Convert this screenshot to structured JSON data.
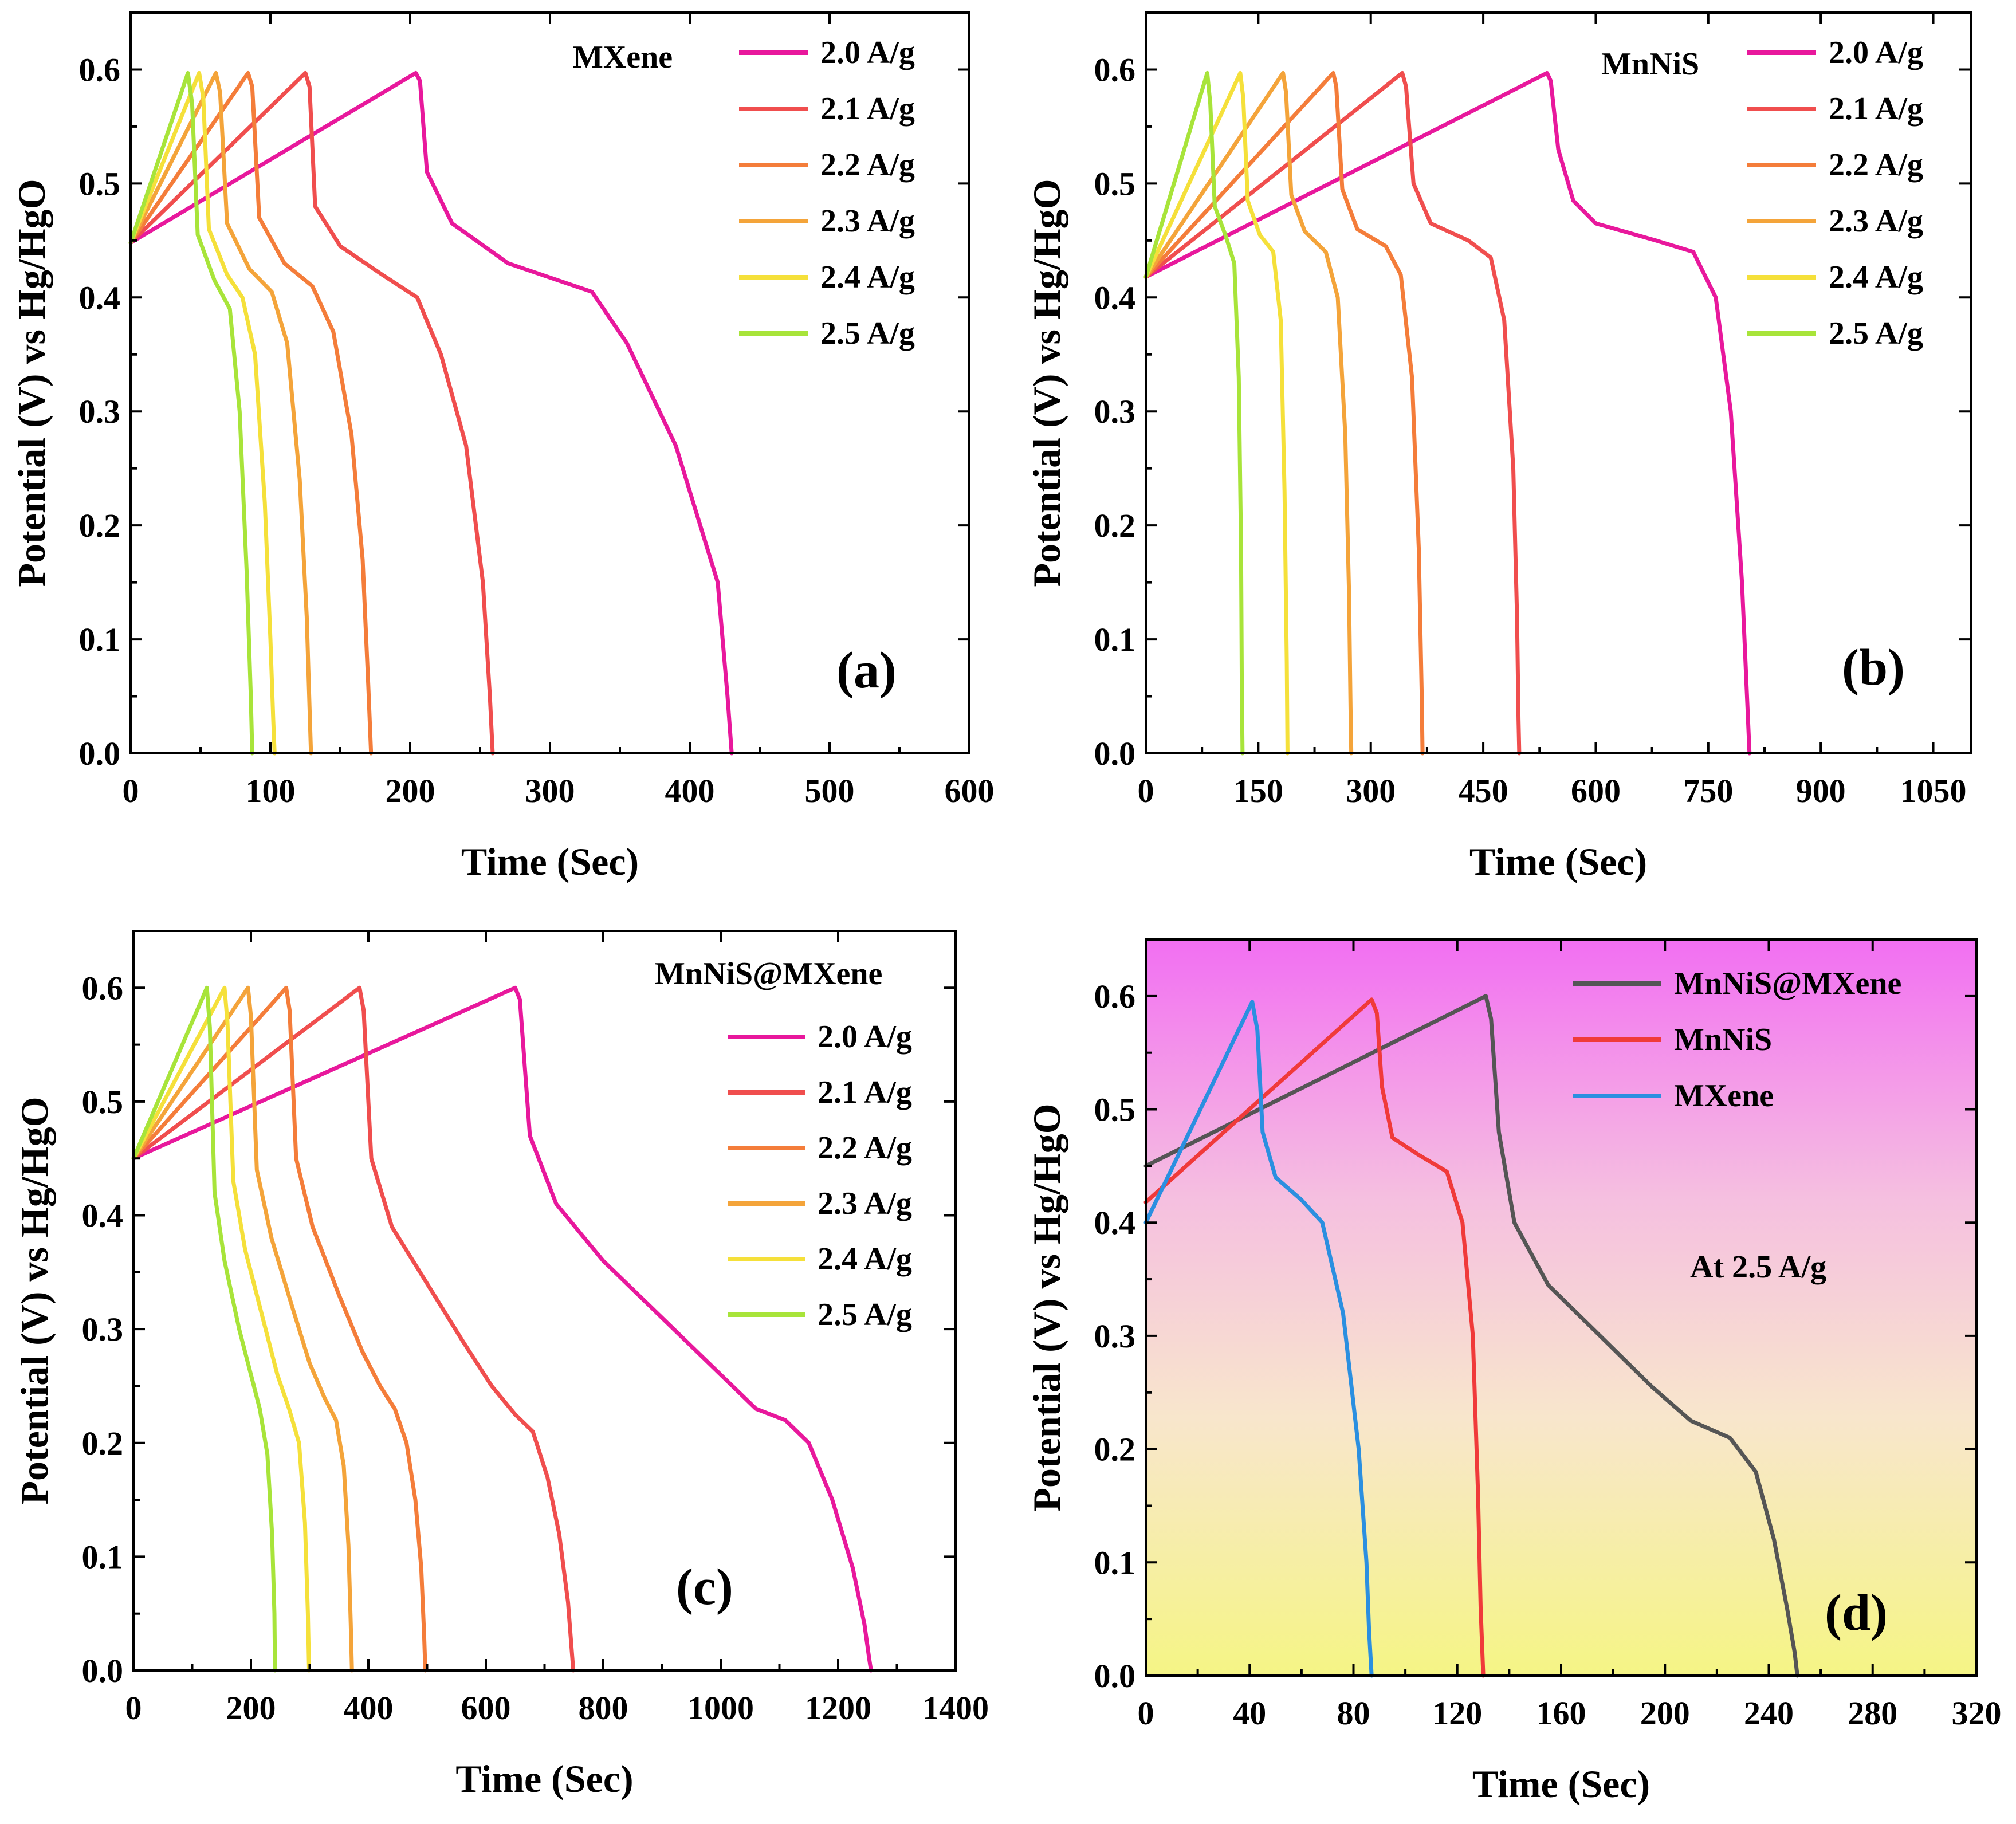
{
  "chart_data": [
    {
      "type": "line",
      "panel_label": "(a)",
      "sample_label": "MXene",
      "xlabel": "Time (Sec)",
      "ylabel": "Potential (V) vs Hg/HgO",
      "xlim": [
        0,
        600
      ],
      "ylim": [
        0,
        0.65
      ],
      "xticks": [
        0,
        100,
        200,
        300,
        400,
        500,
        600
      ],
      "yticks": [
        0.0,
        0.1,
        0.2,
        0.3,
        0.4,
        0.5,
        0.6
      ],
      "background": "white",
      "series": [
        {
          "name": "2.0 A/g",
          "color": "#e8189c",
          "x": [
            0,
            204,
            207,
            212,
            230,
            270,
            330,
            355,
            390,
            420,
            427,
            430
          ],
          "y": [
            0.448,
            0.597,
            0.59,
            0.51,
            0.465,
            0.43,
            0.405,
            0.36,
            0.27,
            0.15,
            0.05,
            0.0
          ]
        },
        {
          "name": "2.1 A/g",
          "color": "#f04e4e",
          "x": [
            0,
            125,
            128,
            132,
            150,
            180,
            205,
            222,
            240,
            252,
            257,
            259
          ],
          "y": [
            0.448,
            0.597,
            0.585,
            0.48,
            0.445,
            0.42,
            0.4,
            0.35,
            0.27,
            0.15,
            0.05,
            0.0
          ]
        },
        {
          "name": "2.2 A/g",
          "color": "#f47d3a",
          "x": [
            0,
            84,
            87,
            92,
            110,
            130,
            145,
            158,
            166,
            170,
            172
          ],
          "y": [
            0.448,
            0.597,
            0.585,
            0.47,
            0.43,
            0.41,
            0.37,
            0.28,
            0.17,
            0.06,
            0.0
          ]
        },
        {
          "name": "2.3 A/g",
          "color": "#f4a43a",
          "x": [
            0,
            61,
            64,
            69,
            85,
            101,
            112,
            121,
            126,
            128,
            129
          ],
          "y": [
            0.448,
            0.597,
            0.58,
            0.465,
            0.425,
            0.405,
            0.36,
            0.24,
            0.12,
            0.04,
            0.0
          ]
        },
        {
          "name": "2.4 A/g",
          "color": "#f5e03a",
          "x": [
            0,
            49,
            52,
            56,
            69,
            80,
            89,
            96,
            100,
            102,
            103
          ],
          "y": [
            0.448,
            0.597,
            0.575,
            0.46,
            0.42,
            0.4,
            0.35,
            0.22,
            0.1,
            0.03,
            0.0
          ]
        },
        {
          "name": "2.5 A/g",
          "color": "#a8e43a",
          "x": [
            0,
            41,
            44,
            48,
            60,
            71,
            78,
            83,
            86,
            87
          ],
          "y": [
            0.448,
            0.597,
            0.57,
            0.455,
            0.415,
            0.39,
            0.3,
            0.16,
            0.05,
            0.0
          ]
        }
      ]
    },
    {
      "type": "line",
      "panel_label": "(b)",
      "sample_label": "MnNiS",
      "xlabel": "Time (Sec)",
      "ylabel": "Potential (V) vs Hg/HgO",
      "xlim": [
        0,
        1100
      ],
      "ylim": [
        0,
        0.65
      ],
      "xticks": [
        0,
        150,
        300,
        450,
        600,
        750,
        900,
        1050
      ],
      "yticks": [
        0.0,
        0.1,
        0.2,
        0.3,
        0.4,
        0.5,
        0.6
      ],
      "background": "white",
      "series": [
        {
          "name": "2.0 A/g",
          "color": "#e8189c",
          "x": [
            0,
            535,
            540,
            550,
            570,
            600,
            680,
            730,
            760,
            780,
            795,
            803,
            805
          ],
          "y": [
            0.418,
            0.597,
            0.59,
            0.53,
            0.485,
            0.465,
            0.45,
            0.44,
            0.4,
            0.3,
            0.15,
            0.03,
            0.0
          ]
        },
        {
          "name": "2.1 A/g",
          "color": "#f04e4e",
          "x": [
            0,
            342,
            347,
            357,
            380,
            430,
            460,
            478,
            490,
            495,
            497,
            498
          ],
          "y": [
            0.418,
            0.597,
            0.585,
            0.5,
            0.465,
            0.45,
            0.435,
            0.38,
            0.25,
            0.12,
            0.03,
            0.0
          ]
        },
        {
          "name": "2.2 A/g",
          "color": "#f47d3a",
          "x": [
            0,
            250,
            254,
            262,
            282,
            320,
            340,
            355,
            364,
            368,
            369
          ],
          "y": [
            0.418,
            0.597,
            0.585,
            0.495,
            0.46,
            0.445,
            0.42,
            0.33,
            0.18,
            0.05,
            0.0
          ]
        },
        {
          "name": "2.3 A/g",
          "color": "#f4a43a",
          "x": [
            0,
            183,
            187,
            194,
            212,
            240,
            256,
            266,
            271,
            273,
            274
          ],
          "y": [
            0.418,
            0.597,
            0.58,
            0.49,
            0.458,
            0.44,
            0.4,
            0.28,
            0.14,
            0.04,
            0.0
          ]
        },
        {
          "name": "2.4 A/g",
          "color": "#f5e03a",
          "x": [
            0,
            126,
            130,
            136,
            152,
            170,
            180,
            185,
            188,
            189
          ],
          "y": [
            0.418,
            0.597,
            0.575,
            0.485,
            0.455,
            0.44,
            0.38,
            0.23,
            0.08,
            0.0
          ]
        },
        {
          "name": "2.5 A/g",
          "color": "#a8e43a",
          "x": [
            0,
            82,
            86,
            92,
            106,
            118,
            124,
            127,
            128,
            129
          ],
          "y": [
            0.418,
            0.597,
            0.57,
            0.48,
            0.455,
            0.43,
            0.33,
            0.18,
            0.06,
            0.0
          ]
        }
      ]
    },
    {
      "type": "line",
      "panel_label": "(c)",
      "sample_label": "MnNiS@MXene",
      "xlabel": "Time (Sec)",
      "ylabel": "Potential (V) vs Hg/HgO",
      "xlim": [
        0,
        1400
      ],
      "ylim": [
        0,
        0.65
      ],
      "xticks": [
        0,
        200,
        400,
        600,
        800,
        1000,
        1200,
        1400
      ],
      "yticks": [
        0.0,
        0.1,
        0.2,
        0.3,
        0.4,
        0.5,
        0.6
      ],
      "background": "white",
      "series": [
        {
          "name": "2.0 A/g",
          "color": "#e8189c",
          "x": [
            0,
            650,
            658,
            675,
            720,
            800,
            900,
            1000,
            1060,
            1110,
            1150,
            1190,
            1225,
            1245,
            1253,
            1256
          ],
          "y": [
            0.45,
            0.6,
            0.59,
            0.47,
            0.41,
            0.36,
            0.31,
            0.26,
            0.23,
            0.22,
            0.2,
            0.15,
            0.09,
            0.04,
            0.01,
            0.0
          ]
        },
        {
          "name": "2.1 A/g",
          "color": "#f04e4e",
          "x": [
            0,
            385,
            392,
            405,
            440,
            500,
            560,
            610,
            650,
            680,
            705,
            725,
            740,
            746,
            749
          ],
          "y": [
            0.45,
            0.6,
            0.58,
            0.45,
            0.39,
            0.34,
            0.29,
            0.25,
            0.225,
            0.21,
            0.17,
            0.12,
            0.06,
            0.02,
            0.0
          ]
        },
        {
          "name": "2.2 A/g",
          "color": "#f47d3a",
          "x": [
            0,
            260,
            266,
            277,
            305,
            350,
            390,
            420,
            445,
            465,
            480,
            490,
            495,
            497
          ],
          "y": [
            0.45,
            0.6,
            0.58,
            0.45,
            0.39,
            0.33,
            0.28,
            0.25,
            0.23,
            0.2,
            0.15,
            0.09,
            0.03,
            0.0
          ]
        },
        {
          "name": "2.3 A/g",
          "color": "#f4a43a",
          "x": [
            0,
            195,
            200,
            210,
            235,
            270,
            300,
            325,
            345,
            358,
            366,
            370,
            372
          ],
          "y": [
            0.45,
            0.6,
            0.575,
            0.44,
            0.38,
            0.32,
            0.27,
            0.24,
            0.22,
            0.18,
            0.11,
            0.04,
            0.0
          ]
        },
        {
          "name": "2.4 A/g",
          "color": "#f5e03a",
          "x": [
            0,
            155,
            160,
            170,
            190,
            220,
            245,
            265,
            282,
            292,
            297,
            299
          ],
          "y": [
            0.45,
            0.6,
            0.57,
            0.43,
            0.37,
            0.31,
            0.26,
            0.23,
            0.2,
            0.13,
            0.05,
            0.0
          ]
        },
        {
          "name": "2.5 A/g",
          "color": "#a8e43a",
          "x": [
            0,
            125,
            130,
            138,
            155,
            180,
            200,
            215,
            228,
            236,
            240,
            241
          ],
          "y": [
            0.45,
            0.6,
            0.565,
            0.42,
            0.36,
            0.3,
            0.26,
            0.23,
            0.19,
            0.12,
            0.05,
            0.0
          ]
        }
      ]
    },
    {
      "type": "line",
      "panel_label": "(d)",
      "annotation": "At 2.5 A/g",
      "xlabel": "Time (Sec)",
      "ylabel": "Potential (V) vs Hg/HgO",
      "xlim": [
        0,
        320
      ],
      "ylim": [
        0,
        0.65
      ],
      "xticks": [
        0,
        40,
        80,
        120,
        160,
        200,
        240,
        280,
        320
      ],
      "yticks": [
        0.0,
        0.1,
        0.2,
        0.3,
        0.4,
        0.5,
        0.6
      ],
      "background": "gradient magenta to yellow",
      "gradient_colors": [
        "#f26ff2",
        "#f5c0da",
        "#f9ead0",
        "#f5f58a"
      ],
      "series": [
        {
          "name": "MnNiS@MXene",
          "color": "#555555",
          "x": [
            0,
            131,
            133,
            136,
            142,
            155,
            175,
            195,
            210,
            225,
            235,
            242,
            247,
            250,
            251
          ],
          "y": [
            0.45,
            0.6,
            0.58,
            0.48,
            0.4,
            0.345,
            0.3,
            0.255,
            0.225,
            0.21,
            0.18,
            0.12,
            0.06,
            0.02,
            0.0
          ]
        },
        {
          "name": "MnNiS",
          "color": "#f03a3a",
          "x": [
            0,
            87,
            89,
            91,
            95,
            105,
            116,
            122,
            126,
            128,
            129,
            130
          ],
          "y": [
            0.418,
            0.597,
            0.585,
            0.52,
            0.475,
            0.46,
            0.445,
            0.4,
            0.3,
            0.16,
            0.06,
            0.0
          ]
        },
        {
          "name": "MXene",
          "color": "#2b8fe0",
          "x": [
            0,
            41,
            43,
            45,
            50,
            60,
            68,
            76,
            82,
            85,
            86,
            87
          ],
          "y": [
            0.4,
            0.595,
            0.57,
            0.48,
            0.44,
            0.42,
            0.4,
            0.32,
            0.2,
            0.1,
            0.04,
            0.0
          ]
        }
      ]
    }
  ]
}
